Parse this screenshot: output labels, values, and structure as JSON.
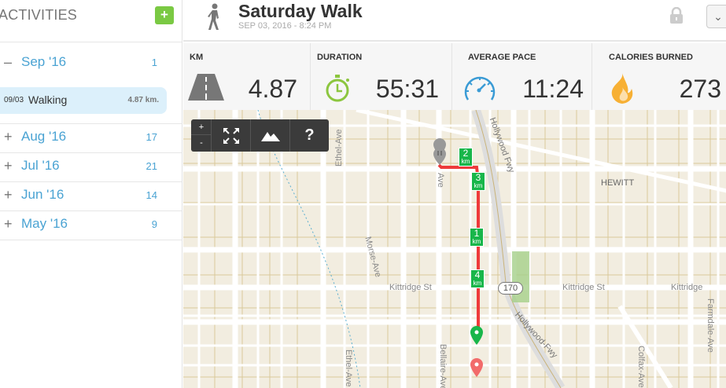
{
  "sidebar": {
    "title": "ACTIVITIES",
    "add_label": "+",
    "months": [
      {
        "sign": "–",
        "label": "Sep '16",
        "count": "1",
        "expanded": true
      },
      {
        "sign": "+",
        "label": "Aug '16",
        "count": "17"
      },
      {
        "sign": "+",
        "label": "Jul '16",
        "count": "21"
      },
      {
        "sign": "+",
        "label": "Jun '16",
        "count": "14"
      },
      {
        "sign": "+",
        "label": "May '16",
        "count": "9"
      }
    ],
    "selected_activity": {
      "date": "09/03",
      "type": "Walking",
      "distance": "4.87 km."
    }
  },
  "header": {
    "title": "Saturday Walk",
    "subtitle": "SEP 03, 2016  -  8:24 PM",
    "icon": "walking-person-icon"
  },
  "stats": [
    {
      "label": "KM",
      "value": "4.87",
      "icon": "road-icon",
      "color": "#777777"
    },
    {
      "label": "DURATION",
      "value": "55:31",
      "icon": "stopwatch-icon",
      "color": "#8cc63f"
    },
    {
      "label": "AVERAGE PACE",
      "value": "11:24",
      "icon": "speedometer-icon",
      "color": "#3a9bd5"
    },
    {
      "label": "CALORIES BURNED",
      "value": "273",
      "icon": "flame-icon",
      "color": "#f7b034"
    }
  ],
  "map": {
    "controls": {
      "zoom_in": "+",
      "zoom_out": "-",
      "help": "?"
    },
    "labels": {
      "hewitt": "HEWITT",
      "kittridge1": "Kittridge St",
      "kittridge2": "Kittridge St",
      "ethel1": "Ethel-Ave",
      "ethel2": "Ethel-Ave",
      "morse": "Morse-Ave",
      "bellaire": "Bellaire-Ave",
      "ave": "Ave",
      "hollywood1": "Hollywood Fwy",
      "hollywood2": "Hollywood-Fwy",
      "colfax": "Colfax-Ave",
      "farmdale": "Farmdale-Ave",
      "kittridge3": "Kittridge",
      "hwy": "170"
    },
    "km_markers": [
      "1",
      "2",
      "3",
      "4"
    ],
    "km_unit": "km",
    "route_color": "#ee3a3a",
    "marker_color": "#18b64a"
  }
}
